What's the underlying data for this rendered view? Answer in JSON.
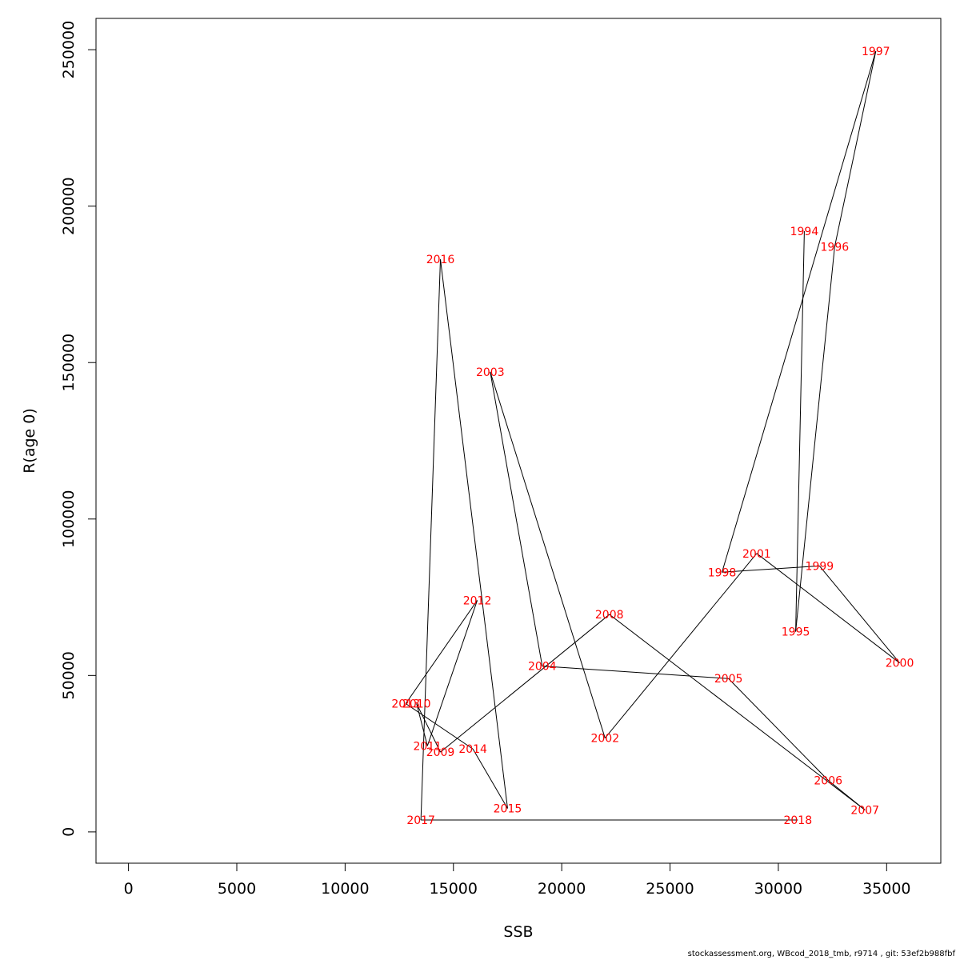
{
  "chart_data": {
    "type": "scatter",
    "xlabel": "SSB",
    "ylabel": "R(age 0)",
    "xlim": [
      -1500,
      37500
    ],
    "ylim": [
      -10000,
      260000
    ],
    "x_ticks": [
      0,
      5000,
      10000,
      15000,
      20000,
      25000,
      30000,
      35000
    ],
    "y_ticks": [
      0,
      50000,
      100000,
      150000,
      200000,
      250000
    ],
    "x_tick_labels": [
      "0",
      "5000",
      "10000",
      "15000",
      "20000",
      "25000",
      "30000",
      "35000"
    ],
    "y_tick_labels": [
      "0",
      "50000",
      "100000",
      "150000",
      "200000",
      "250000"
    ],
    "grid": false,
    "connected": true,
    "point_label_color": "#ff0000",
    "line_color": "#000000",
    "points": [
      {
        "year": "1994",
        "ssb": 31200,
        "r": 192000
      },
      {
        "year": "1995",
        "ssb": 30800,
        "r": 64000
      },
      {
        "year": "1996",
        "ssb": 32600,
        "r": 187000
      },
      {
        "year": "1997",
        "ssb": 34500,
        "r": 249500
      },
      {
        "year": "1998",
        "ssb": 27400,
        "r": 83000
      },
      {
        "year": "1999",
        "ssb": 31900,
        "r": 85000
      },
      {
        "year": "2000",
        "ssb": 35600,
        "r": 54000
      },
      {
        "year": "2001",
        "ssb": 29000,
        "r": 89000
      },
      {
        "year": "2002",
        "ssb": 22000,
        "r": 30000
      },
      {
        "year": "2003",
        "ssb": 16700,
        "r": 147000
      },
      {
        "year": "2004",
        "ssb": 19100,
        "r": 53000
      },
      {
        "year": "2005",
        "ssb": 27700,
        "r": 49000
      },
      {
        "year": "2006",
        "ssb": 32300,
        "r": 16500
      },
      {
        "year": "2007",
        "ssb": 34000,
        "r": 7000
      },
      {
        "year": "2008",
        "ssb": 22200,
        "r": 69500
      },
      {
        "year": "2009",
        "ssb": 14400,
        "r": 25500
      },
      {
        "year": "2010",
        "ssb": 13300,
        "r": 41000
      },
      {
        "year": "2011",
        "ssb": 13800,
        "r": 27500
      },
      {
        "year": "2012",
        "ssb": 16100,
        "r": 74000
      },
      {
        "year": "2013",
        "ssb": 12800,
        "r": 41000
      },
      {
        "year": "2014",
        "ssb": 15900,
        "r": 26500
      },
      {
        "year": "2015",
        "ssb": 17500,
        "r": 7500
      },
      {
        "year": "2016",
        "ssb": 14400,
        "r": 183000
      },
      {
        "year": "2017",
        "ssb": 13500,
        "r": 3800
      },
      {
        "year": "2018",
        "ssb": 30900,
        "r": 3800
      }
    ]
  },
  "footer_text": "stockassessment.org, WBcod_2018_tmb, r9714 , git: 53ef2b988fbf"
}
